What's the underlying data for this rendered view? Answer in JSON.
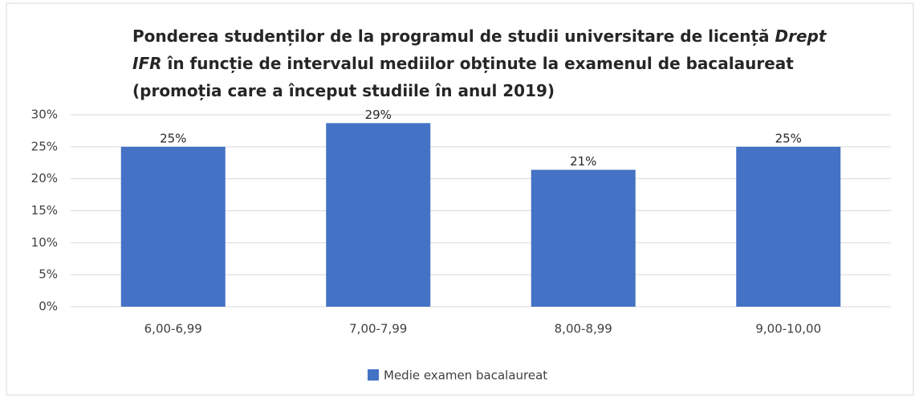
{
  "chart_data": {
    "type": "bar",
    "title": [
      {
        "text": "Ponderea studenților de la programul de studii universitare de licență ",
        "italic": false
      },
      {
        "text": "Drept IFR",
        "italic": true
      },
      {
        "text": " în funcție de intervalul mediilor obținute la examenul de bacalaureat (promoția care a început studiile în anul 2019)",
        "italic": false
      }
    ],
    "categories": [
      "6,00-6,99",
      "7,00-7,99",
      "8,00-8,99",
      "9,00-10,00"
    ],
    "series": [
      {
        "name": "Medie examen bacalaureat",
        "color": "#4472c4",
        "values": [
          25,
          28.7,
          21.4,
          25
        ],
        "value_labels": [
          "25%",
          "29%",
          "21%",
          "25%"
        ]
      }
    ],
    "ylim": [
      0,
      30
    ],
    "yticks": [
      {
        "value": 0,
        "label": "0%"
      },
      {
        "value": 5,
        "label": "5%"
      },
      {
        "value": 10,
        "label": "10%"
      },
      {
        "value": 15,
        "label": "15%"
      },
      {
        "value": 20,
        "label": "20%"
      },
      {
        "value": 25,
        "label": "25%"
      },
      {
        "value": 30,
        "label": "30%"
      }
    ],
    "grid": true,
    "legend": "bottom"
  }
}
